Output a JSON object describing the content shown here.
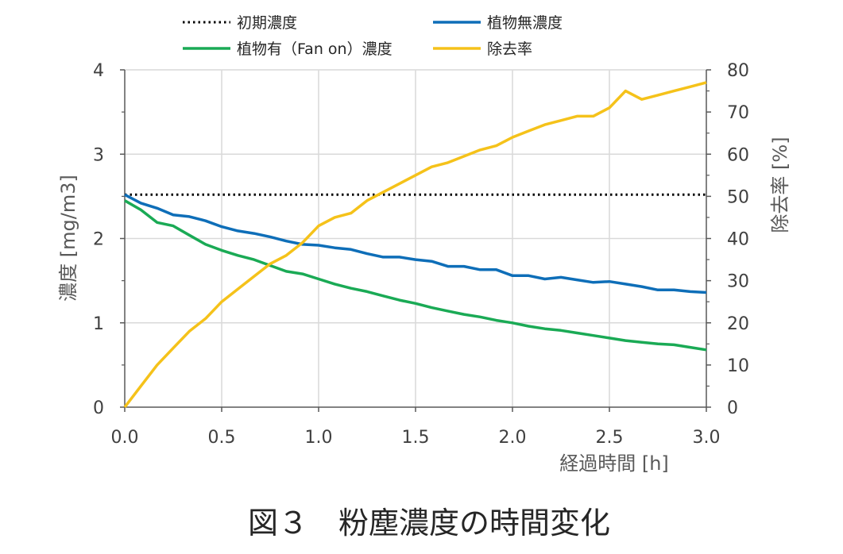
{
  "chart_data": {
    "type": "line",
    "title": "図３　粉塵濃度の時間変化",
    "xlabel": "経過時間 [h]",
    "ylabel": "濃度 [mg/m3]",
    "y2label": "除去率 [%]",
    "xlim": [
      0,
      3
    ],
    "ylim": [
      0,
      4
    ],
    "y2lim": [
      0,
      80
    ],
    "x_ticks": [
      "0.0",
      "0.5",
      "1.0",
      "1.5",
      "2.0",
      "2.5",
      "3.0"
    ],
    "y_ticks": [
      "0",
      "1",
      "2",
      "3",
      "4"
    ],
    "y2_ticks": [
      "0",
      "10",
      "20",
      "30",
      "40",
      "50",
      "60",
      "70",
      "80"
    ],
    "grid": true,
    "legend_position": "top",
    "series": [
      {
        "name": "初期濃度",
        "axis": "left",
        "color": "#000000",
        "style": "dotted",
        "x": [
          0,
          3
        ],
        "values": [
          2.52,
          2.52
        ]
      },
      {
        "name": "植物無濃度",
        "axis": "left",
        "color": "#0e6eb8",
        "style": "solid",
        "x": [
          0,
          0.083,
          0.167,
          0.25,
          0.333,
          0.417,
          0.5,
          0.583,
          0.667,
          0.75,
          0.833,
          0.917,
          1.0,
          1.083,
          1.167,
          1.25,
          1.333,
          1.417,
          1.5,
          1.583,
          1.667,
          1.75,
          1.833,
          1.917,
          2.0,
          2.083,
          2.167,
          2.25,
          2.333,
          2.417,
          2.5,
          2.583,
          2.667,
          2.75,
          2.833,
          2.917,
          3.0
        ],
        "values": [
          2.52,
          2.42,
          2.36,
          2.28,
          2.26,
          2.21,
          2.14,
          2.09,
          2.06,
          2.02,
          1.97,
          1.93,
          1.92,
          1.89,
          1.87,
          1.82,
          1.78,
          1.78,
          1.75,
          1.73,
          1.67,
          1.67,
          1.63,
          1.63,
          1.56,
          1.56,
          1.52,
          1.54,
          1.51,
          1.48,
          1.49,
          1.46,
          1.43,
          1.39,
          1.39,
          1.37,
          1.36
        ]
      },
      {
        "name": "植物有（Fan on）濃度",
        "axis": "left",
        "color": "#1aaa55",
        "style": "solid",
        "x": [
          0,
          0.083,
          0.167,
          0.25,
          0.333,
          0.417,
          0.5,
          0.583,
          0.667,
          0.75,
          0.833,
          0.917,
          1.0,
          1.083,
          1.167,
          1.25,
          1.333,
          1.417,
          1.5,
          1.583,
          1.667,
          1.75,
          1.833,
          1.917,
          2.0,
          2.083,
          2.167,
          2.25,
          2.333,
          2.417,
          2.5,
          2.583,
          2.667,
          2.75,
          2.833,
          2.917,
          3.0
        ],
        "values": [
          2.45,
          2.34,
          2.19,
          2.15,
          2.04,
          1.93,
          1.86,
          1.8,
          1.75,
          1.68,
          1.61,
          1.58,
          1.52,
          1.46,
          1.41,
          1.37,
          1.32,
          1.27,
          1.23,
          1.18,
          1.14,
          1.1,
          1.07,
          1.03,
          1.0,
          0.96,
          0.93,
          0.91,
          0.88,
          0.85,
          0.82,
          0.79,
          0.77,
          0.75,
          0.74,
          0.71,
          0.68
        ]
      },
      {
        "name": "除去率",
        "axis": "right",
        "color": "#f5c21a",
        "style": "solid",
        "x": [
          0,
          0.083,
          0.167,
          0.25,
          0.333,
          0.417,
          0.5,
          0.583,
          0.667,
          0.75,
          0.833,
          0.917,
          1.0,
          1.083,
          1.167,
          1.25,
          1.333,
          1.417,
          1.5,
          1.583,
          1.667,
          1.75,
          1.833,
          1.917,
          2.0,
          2.083,
          2.167,
          2.25,
          2.333,
          2.417,
          2.5,
          2.583,
          2.667,
          2.75,
          2.833,
          2.917,
          3.0
        ],
        "values": [
          0,
          5,
          10,
          14,
          18,
          21,
          25,
          28,
          31,
          34,
          36,
          39,
          43,
          45,
          46,
          49,
          51,
          53,
          55,
          57,
          58,
          59.5,
          61,
          62,
          64,
          65.5,
          67,
          68,
          69,
          69,
          71,
          75,
          73,
          74,
          75,
          76,
          77
        ]
      }
    ]
  }
}
